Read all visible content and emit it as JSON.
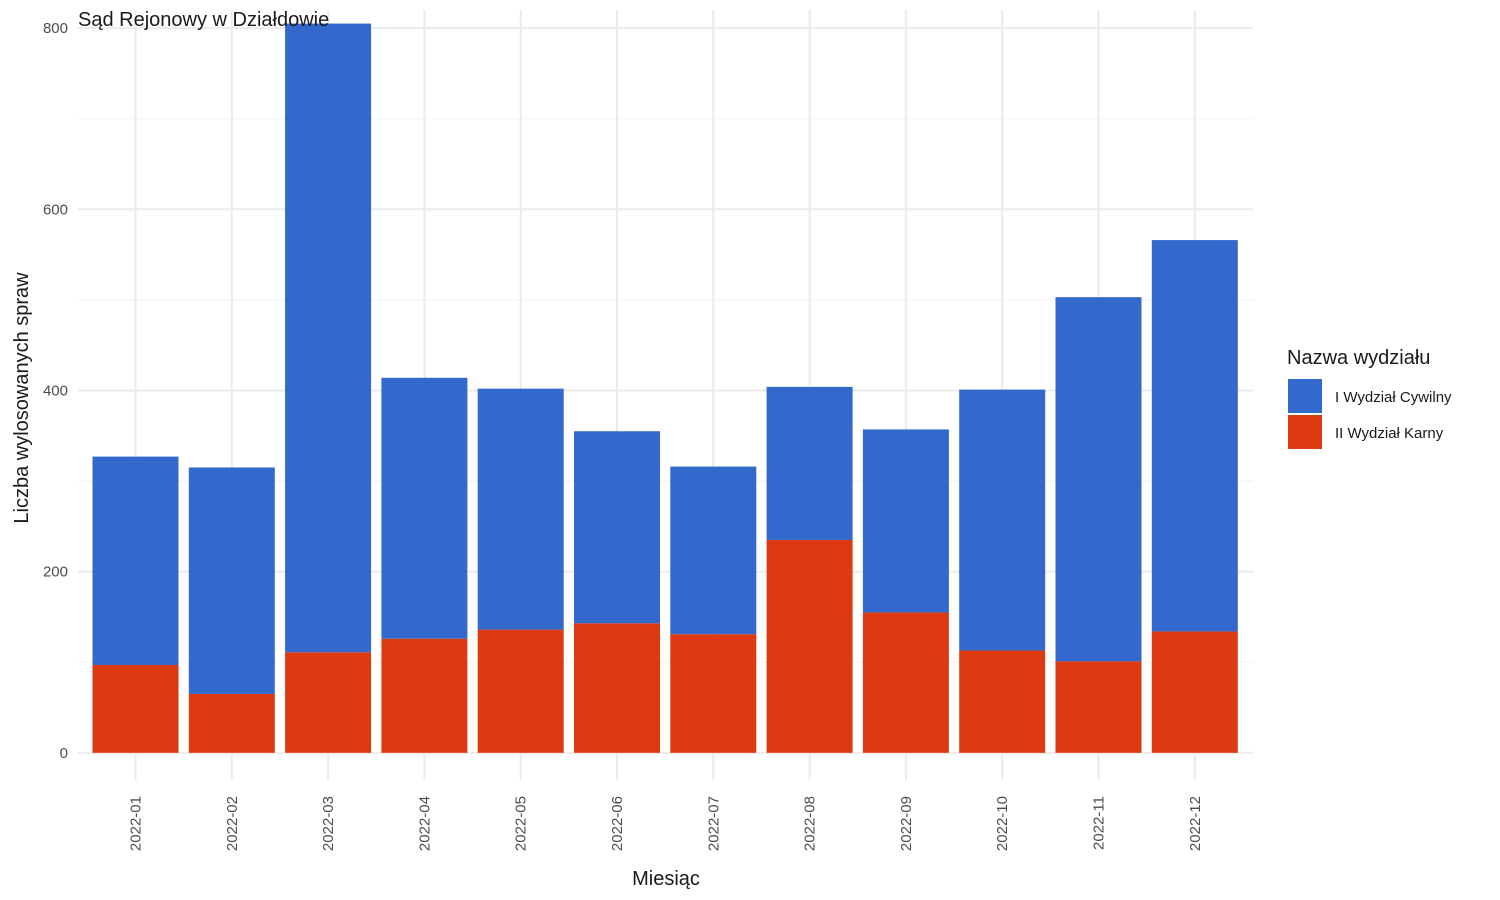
{
  "chart_data": {
    "type": "bar",
    "stacked": true,
    "title": "Sąd Rejonowy w Działdowie",
    "xlabel": "Miesiąc",
    "ylabel": "Liczba wylosowanych spraw",
    "ylim": [
      -30,
      820
    ],
    "yticks": [
      0,
      200,
      400,
      600,
      800
    ],
    "grid": true,
    "legend": {
      "title": "Nazwa wydziału",
      "placement": "right"
    },
    "categories": [
      "2022-01",
      "2022-02",
      "2022-03",
      "2022-04",
      "2022-05",
      "2022-06",
      "2022-07",
      "2022-08",
      "2022-09",
      "2022-10",
      "2022-11",
      "2022-12"
    ],
    "series": [
      {
        "name": "II Wydział Karny",
        "color": "#dd3a12",
        "values": [
          97,
          65,
          111,
          126,
          136,
          143,
          131,
          235,
          155,
          113,
          101,
          134
        ]
      },
      {
        "name": "I Wydział Cywilny",
        "color": "#3368cc",
        "values": [
          230,
          250,
          694,
          288,
          266,
          212,
          185,
          169,
          202,
          288,
          402,
          432
        ]
      }
    ],
    "legend_order": [
      "I Wydział Cywilny",
      "II Wydział Karny"
    ]
  }
}
